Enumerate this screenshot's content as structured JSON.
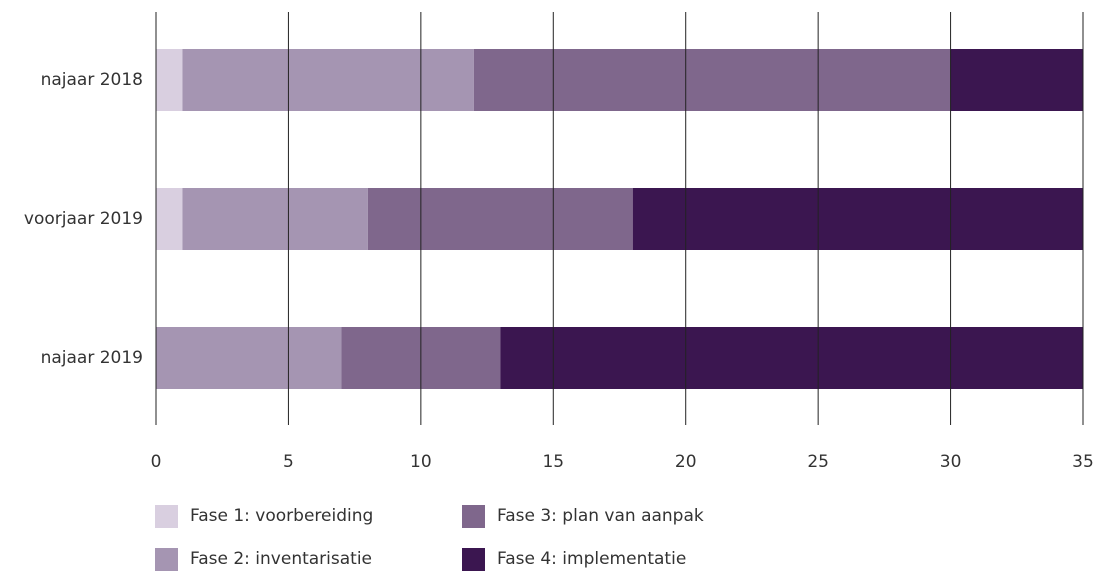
{
  "chart_data": {
    "type": "bar",
    "orientation": "horizontal",
    "stacked": true,
    "categories": [
      "najaar 2018",
      "voorjaar 2019",
      "najaar 2019"
    ],
    "series": [
      {
        "name": "Fase 1: voorbereiding",
        "color": "#d9cfe0",
        "values": [
          1,
          1,
          0
        ]
      },
      {
        "name": "Fase 2: inventarisatie",
        "color": "#a595b2",
        "values": [
          11,
          7,
          7
        ]
      },
      {
        "name": "Fase 3: plan van aanpak",
        "color": "#7f678c",
        "values": [
          18,
          10,
          6
        ]
      },
      {
        "name": "Fase 4: implementatie",
        "color": "#3b1650",
        "values": [
          5,
          17,
          22
        ]
      }
    ],
    "xlim": [
      0,
      35
    ],
    "xticks": [
      0,
      5,
      10,
      15,
      20,
      25,
      30,
      35
    ],
    "grid": true,
    "legend": "bottom"
  }
}
